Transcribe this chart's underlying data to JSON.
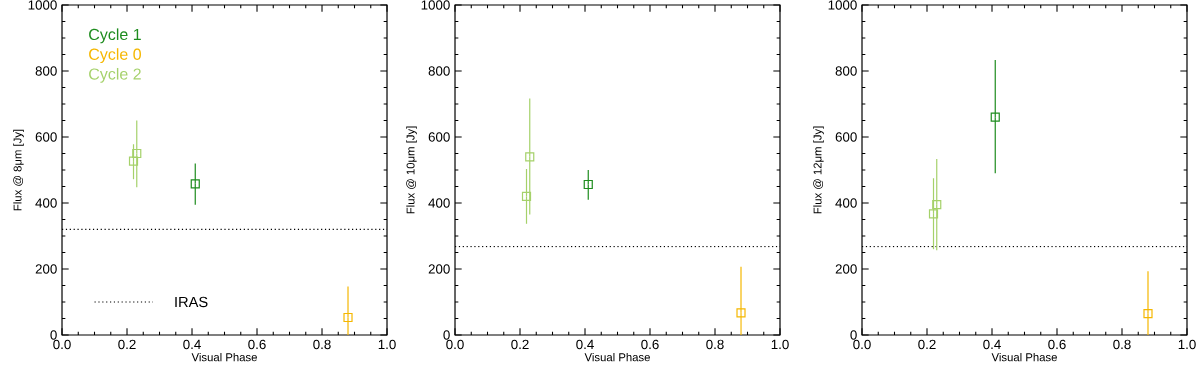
{
  "chart_data": [
    {
      "type": "scatter",
      "xlabel": "Visual Phase",
      "ylabel": "Flux @ 8μm [Jy]",
      "marker": "square",
      "legend": "bottom left",
      "xlim": [
        0,
        1
      ],
      "ylim": [
        0,
        1000
      ],
      "xticks": [
        {
          "value": 0,
          "label": "0.0"
        },
        {
          "value": 0.2,
          "label": "0.2"
        },
        {
          "value": 0.4,
          "label": "0.4"
        },
        {
          "value": 0.6,
          "label": "0.6"
        },
        {
          "value": 0.8,
          "label": "0.8"
        },
        {
          "value": 1,
          "label": "1.0"
        }
      ],
      "yticks": [
        0,
        200,
        400,
        600,
        800,
        1000
      ],
      "series": [
        {
          "name": "Cycle 1",
          "color": "#1e8c1e",
          "x": [
            0.41
          ],
          "values": [
            458
          ],
          "errors": [
            [
              395,
              520
            ]
          ]
        },
        {
          "name": "Cycle 0",
          "color": "#f5b700",
          "x": [
            0.88
          ],
          "values": [
            53
          ],
          "errors": [
            [
              0,
              147
            ]
          ]
        },
        {
          "name": "Cycle 2",
          "color": "#a5d16a",
          "x": [
            0.22,
            0.23
          ],
          "values": [
            527,
            550
          ],
          "errors": [
            [
              472,
              578
            ],
            [
              448,
              650
            ]
          ]
        }
      ],
      "ref_lines": [
        {
          "axis": "y",
          "value": 320,
          "label": "IRAS",
          "color": "#000000",
          "line_style": "dotted"
        }
      ]
    },
    {
      "type": "scatter",
      "xlabel": "Visual Phase",
      "ylabel": "Flux @ 10μm [Jy]",
      "marker": "square",
      "xlim": [
        0,
        1
      ],
      "ylim": [
        0,
        1000
      ],
      "xticks": [
        {
          "value": 0,
          "label": "0.0"
        },
        {
          "value": 0.2,
          "label": "0.2"
        },
        {
          "value": 0.4,
          "label": "0.4"
        },
        {
          "value": 0.6,
          "label": "0.6"
        },
        {
          "value": 0.8,
          "label": "0.8"
        },
        {
          "value": 1,
          "label": "1.0"
        }
      ],
      "yticks": [
        0,
        200,
        400,
        600,
        800,
        1000
      ],
      "series": [
        {
          "color": "#1e8c1e",
          "x": [
            0.41
          ],
          "values": [
            456
          ],
          "errors": [
            [
              410,
              500
            ]
          ]
        },
        {
          "color": "#f5b700",
          "x": [
            0.88
          ],
          "values": [
            67
          ],
          "errors": [
            [
              0,
              207
            ]
          ]
        },
        {
          "color": "#a5d16a",
          "x": [
            0.22,
            0.23
          ],
          "values": [
            420,
            540
          ],
          "errors": [
            [
              337,
              503
            ],
            [
              365,
              717
            ]
          ]
        }
      ],
      "ref_lines": [
        {
          "axis": "y",
          "value": 268,
          "color": "#000000",
          "line_style": "dotted"
        }
      ]
    },
    {
      "type": "scatter",
      "xlabel": "Visual Phase",
      "ylabel": "Flux @ 12μm [Jy]",
      "marker": "square",
      "xlim": [
        0,
        1
      ],
      "ylim": [
        0,
        1000
      ],
      "xticks": [
        {
          "value": 0,
          "label": "0.0"
        },
        {
          "value": 0.2,
          "label": "0.2"
        },
        {
          "value": 0.4,
          "label": "0.4"
        },
        {
          "value": 0.6,
          "label": "0.6"
        },
        {
          "value": 0.8,
          "label": "0.8"
        },
        {
          "value": 1,
          "label": "1.0"
        }
      ],
      "yticks": [
        0,
        200,
        400,
        600,
        800,
        1000
      ],
      "series": [
        {
          "color": "#1e8c1e",
          "x": [
            0.41
          ],
          "values": [
            660
          ],
          "errors": [
            [
              490,
              833
            ]
          ]
        },
        {
          "color": "#f5b700",
          "x": [
            0.88
          ],
          "values": [
            65
          ],
          "errors": [
            [
              0,
              193
            ]
          ]
        },
        {
          "color": "#a5d16a",
          "x": [
            0.22,
            0.23
          ],
          "values": [
            367,
            395
          ],
          "errors": [
            [
              260,
              475
            ],
            [
              257,
              533
            ]
          ]
        }
      ],
      "ref_lines": [
        {
          "axis": "y",
          "value": 268,
          "color": "#000000",
          "line_style": "dotted"
        }
      ]
    }
  ]
}
